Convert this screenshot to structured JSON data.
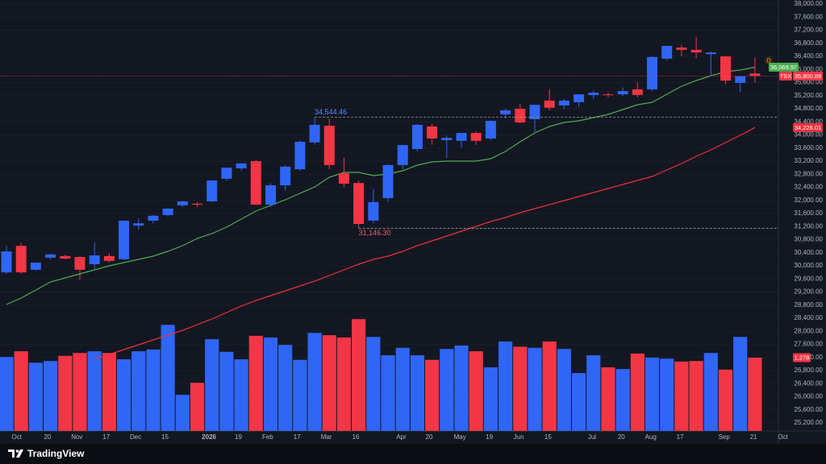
{
  "chart_data": {
    "type": "candlestick",
    "symbol": "TSX",
    "brand": "TradingView",
    "interval_marker": "D",
    "up_color": "#2f66f6",
    "down_color": "#f23645",
    "grid": true,
    "ylim": [
      24954,
      38123
    ],
    "yticks": [
      {
        "value": 25200,
        "label": "25,200.00"
      },
      {
        "value": 25600,
        "label": "25,600.00"
      },
      {
        "value": 26000,
        "label": "26,000.00"
      },
      {
        "value": 26400,
        "label": "26,400.00"
      },
      {
        "value": 26800,
        "label": "26,800.00"
      },
      {
        "value": 27200,
        "label": "27,200.00"
      },
      {
        "value": 27600,
        "label": "27,600.00"
      },
      {
        "value": 28000,
        "label": "28,000.00"
      },
      {
        "value": 28400,
        "label": "28,400.00"
      },
      {
        "value": 28800,
        "label": "28,800.00"
      },
      {
        "value": 29200,
        "label": "29,200.00"
      },
      {
        "value": 29600,
        "label": "29,600.00"
      },
      {
        "value": 30000,
        "label": "30,000.00"
      },
      {
        "value": 30400,
        "label": "30,400.00"
      },
      {
        "value": 30800,
        "label": "30,800.00"
      },
      {
        "value": 31200,
        "label": "31,200.00"
      },
      {
        "value": 31600,
        "label": "31,600.00"
      },
      {
        "value": 32000,
        "label": "32,000.00"
      },
      {
        "value": 32400,
        "label": "32,400.00"
      },
      {
        "value": 32800,
        "label": "32,800.00"
      },
      {
        "value": 33200,
        "label": "33,200.00"
      },
      {
        "value": 33600,
        "label": "33,600.00"
      },
      {
        "value": 34000,
        "label": "34,000.00"
      },
      {
        "value": 34400,
        "label": "34,400.00"
      },
      {
        "value": 34800,
        "label": "34,800.00"
      },
      {
        "value": 35200,
        "label": "35,200.00"
      },
      {
        "value": 35600,
        "label": "35,600.00"
      },
      {
        "value": 36000,
        "label": "36,000.00"
      },
      {
        "value": 36400,
        "label": "36,400.00"
      },
      {
        "value": 36800,
        "label": "36,800.00"
      },
      {
        "value": 37200,
        "label": "37,200.00"
      },
      {
        "value": 37600,
        "label": "37,600.00"
      },
      {
        "value": 38000,
        "label": "38,000.00"
      }
    ],
    "xlim": [
      -0.44,
      52.6
    ],
    "xticks": [
      {
        "value": 0.7,
        "label": "Oct"
      },
      {
        "value": 2.8,
        "label": "20"
      },
      {
        "value": 4.8,
        "label": "Nov"
      },
      {
        "value": 6.8,
        "label": "17"
      },
      {
        "value": 8.8,
        "label": "Dec"
      },
      {
        "value": 10.8,
        "label": "15"
      },
      {
        "value": 13.8,
        "label": "2026"
      },
      {
        "value": 15.8,
        "label": "19"
      },
      {
        "value": 17.8,
        "label": "Feb"
      },
      {
        "value": 19.8,
        "label": "17"
      },
      {
        "value": 21.8,
        "label": "Mar"
      },
      {
        "value": 23.8,
        "label": "16"
      },
      {
        "value": 26.9,
        "label": "Apr"
      },
      {
        "value": 28.8,
        "label": "20"
      },
      {
        "value": 30.9,
        "label": "May"
      },
      {
        "value": 32.9,
        "label": "19"
      },
      {
        "value": 34.9,
        "label": "Jun"
      },
      {
        "value": 36.9,
        "label": "15"
      },
      {
        "value": 39.9,
        "label": "Jul"
      },
      {
        "value": 41.9,
        "label": "20"
      },
      {
        "value": 43.9,
        "label": "Aug"
      },
      {
        "value": 45.9,
        "label": "17"
      },
      {
        "value": 48.9,
        "label": "Sep"
      },
      {
        "value": 50.9,
        "label": "21"
      },
      {
        "value": 52.9,
        "label": "Oct"
      }
    ],
    "open": [
      29800,
      30610,
      29880,
      30250,
      30300,
      30270,
      30050,
      30300,
      30200,
      31230,
      31380,
      31550,
      31850,
      31900,
      31970,
      32660,
      32980,
      33200,
      31870,
      32460,
      32950,
      33770,
      34280,
      32830,
      32530,
      31380,
      32070,
      33080,
      33570,
      34260,
      33840,
      33820,
      34060,
      33890,
      34630,
      34800,
      34480,
      35050,
      34900,
      35000,
      35220,
      35240,
      35240,
      35390,
      35390,
      36330,
      36670,
      36600,
      36470,
      36400,
      35590,
      35880
    ],
    "high": [
      30610,
      30700,
      30100,
      30360,
      30340,
      30300,
      30720,
      30380,
      31380,
      31450,
      31560,
      31760,
      31980,
      31950,
      32610,
      33000,
      33130,
      33250,
      32520,
      33080,
      33830,
      34544.46,
      34500,
      33300,
      32600,
      32350,
      33100,
      33700,
      34330,
      34330,
      33980,
      34060,
      34100,
      34450,
      34800,
      34950,
      34920,
      35400,
      35100,
      35250,
      35350,
      35300,
      35450,
      35600,
      36400,
      36720,
      36750,
      37000,
      36550,
      36420,
      35800,
      36370
    ],
    "low": [
      29750,
      29750,
      29850,
      30200,
      30200,
      29560,
      29880,
      30100,
      30170,
      31100,
      31300,
      31500,
      31800,
      31800,
      31950,
      32600,
      32900,
      31850,
      31800,
      32300,
      32900,
      33700,
      32950,
      32400,
      31146.3,
      31300,
      31950,
      32950,
      33500,
      33700,
      33300,
      33600,
      33700,
      33850,
      34500,
      34350,
      34100,
      34750,
      34800,
      34850,
      35100,
      35150,
      35200,
      35150,
      35350,
      36280,
      36400,
      36350,
      35800,
      35550,
      35300,
      35600
    ],
    "close": [
      30440,
      29800,
      30100,
      30350,
      30220,
      29880,
      30320,
      30150,
      31380,
      31300,
      31530,
      31750,
      31970,
      31870,
      32610,
      33000,
      33130,
      31870,
      32460,
      33030,
      33790,
      34310,
      33080,
      32510,
      31280,
      31950,
      33080,
      33690,
      34310,
      33890,
      33910,
      34060,
      33820,
      34430,
      34750,
      34380,
      34920,
      34830,
      35050,
      35240,
      35290,
      35220,
      35340,
      35220,
      36380,
      36720,
      36600,
      36520,
      36520,
      35660,
      35790,
      35800.89
    ],
    "last_price_label": "35,800.89",
    "volume": [
      1.29,
      1.39,
      1.19,
      1.22,
      1.31,
      1.36,
      1.39,
      1.36,
      1.25,
      1.39,
      1.42,
      1.85,
      0.63,
      0.84,
      1.6,
      1.38,
      1.25,
      1.66,
      1.63,
      1.5,
      1.24,
      1.71,
      1.67,
      1.63,
      1.95,
      1.64,
      1.32,
      1.45,
      1.32,
      1.24,
      1.43,
      1.49,
      1.39,
      1.11,
      1.56,
      1.47,
      1.45,
      1.56,
      1.43,
      1.01,
      1.32,
      1.11,
      1.08,
      1.35,
      1.28,
      1.26,
      1.21,
      1.22,
      1.36,
      1.07,
      1.64,
      1.278
    ],
    "volume_label": "1.278",
    "moving_averages": [
      {
        "color": "#4caf50",
        "label_color": "#4caf50",
        "values": [
          28819,
          29015,
          29262,
          29508,
          29631,
          29754,
          29877,
          30000,
          30099,
          30197,
          30295,
          30443,
          30615,
          30837,
          30985,
          31182,
          31428,
          31674,
          31846,
          32019,
          32215,
          32412,
          32708,
          32855,
          32855,
          32757,
          32806,
          32905,
          33077,
          33175,
          33200,
          33200,
          33200,
          33274,
          33495,
          33791,
          34062,
          34258,
          34382,
          34431,
          34529,
          34628,
          34775,
          34923,
          34997,
          35243,
          35489,
          35661,
          35809,
          35932,
          35982,
          36069.97
        ],
        "last_label": "36,069.97"
      },
      {
        "color": "#e8323c",
        "label_color": "#e8323c",
        "values": [
          null,
          null,
          null,
          null,
          null,
          null,
          27145,
          27292,
          27440,
          27588,
          27735,
          27883,
          28031,
          28203,
          28375,
          28572,
          28769,
          28942,
          29089,
          29237,
          29385,
          29532,
          29705,
          29877,
          30049,
          30197,
          30295,
          30443,
          30615,
          30763,
          30911,
          31058,
          31206,
          31354,
          31477,
          31625,
          31748,
          31871,
          31994,
          32117,
          32240,
          32363,
          32486,
          32609,
          32732,
          32929,
          33126,
          33348,
          33545,
          33766,
          33988,
          34226.01
        ],
        "last_label": "34,226.01"
      }
    ],
    "annotations": [
      {
        "index": 21,
        "value": 34544.46,
        "label": "34,544.46",
        "color": "#5b8cff"
      },
      {
        "index": 24,
        "value": 31146.3,
        "label": "31,146.30",
        "color": "#f0606a"
      }
    ]
  }
}
